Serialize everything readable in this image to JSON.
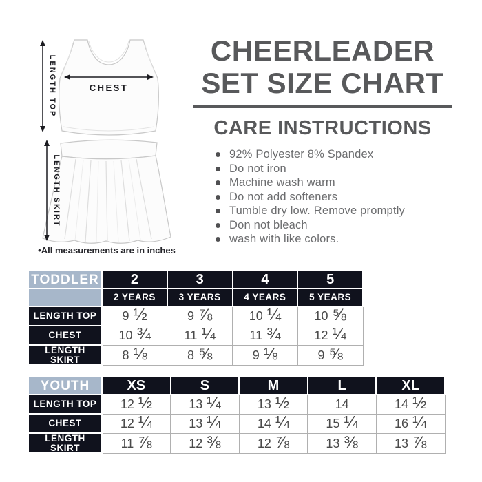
{
  "page": {
    "title_line1": "CHEERLEADER",
    "title_line2": "SET SIZE CHART",
    "care_heading": "CARE INSTRUCTIONS",
    "care_items": [
      "92% Polyester 8% Spandex",
      "Do not iron",
      "Machine wash warm",
      "Do not add softeners",
      "Tumble dry low. Remove promptly",
      "Don not bleach",
      "wash with like colors."
    ],
    "footnote": "•All measurements are in inches"
  },
  "diagram": {
    "chest_label": "CHEST",
    "length_top_label": "LENGTH TOP",
    "length_skirt_label": "LENGTH SKIRT"
  },
  "colors": {
    "header_dark_bg": "#10121d",
    "header_blue_bg": "#a7b7ca",
    "title_gray": "#58595b",
    "body_gray": "#6c6d6f",
    "table_text": "#4a4a4a",
    "grid_line": "#b0b0b0"
  },
  "tables": {
    "toddler": {
      "group_label": "TODDLER",
      "sizes": [
        "2",
        "3",
        "4",
        "5"
      ],
      "size_sublabels": [
        "2 YEARS",
        "3 YEARS",
        "4 YEARS",
        "5 YEARS"
      ],
      "rows": [
        {
          "label": "LENGTH TOP",
          "values": [
            "9 ½",
            "9 ⅞",
            "10 ¼",
            "10 ⅝"
          ]
        },
        {
          "label": "CHEST",
          "values": [
            "10 ¾",
            "11 ¼",
            "11 ¾",
            "12 ¼"
          ]
        },
        {
          "label": "LENGTH SKIRT",
          "values": [
            "8 ⅛",
            "8 ⅝",
            "9 ⅛",
            "9 ⅝"
          ]
        }
      ]
    },
    "youth": {
      "group_label": "YOUTH",
      "sizes": [
        "XS",
        "S",
        "M",
        "L",
        "XL"
      ],
      "rows": [
        {
          "label": "LENGTH TOP",
          "values": [
            "12 ½",
            "13 ¼",
            "13 ½",
            "14",
            "14 ½"
          ]
        },
        {
          "label": "CHEST",
          "values": [
            "12 ¼",
            "13 ¼",
            "14 ¼",
            "15 ¼",
            "16 ¼"
          ]
        },
        {
          "label": "LENGTH SKIRT",
          "values": [
            "11 ⅞",
            "12 ⅜",
            "12 ⅞",
            "13 ⅜",
            "13 ⅞"
          ]
        }
      ]
    }
  }
}
